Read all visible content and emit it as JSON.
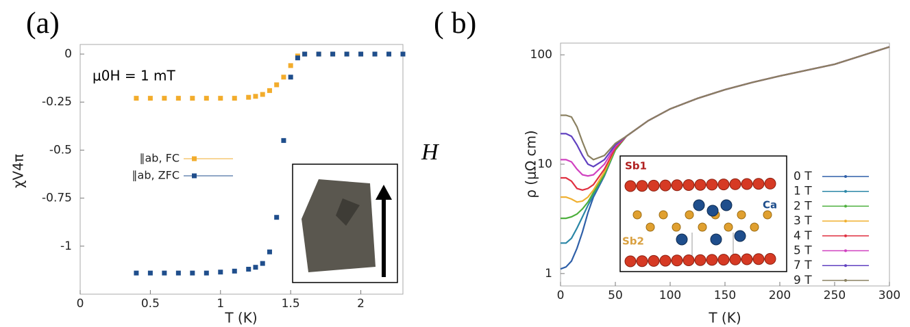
{
  "chart_data": [
    {
      "type": "scatter",
      "label": "(a)",
      "xlabel": "T (K)",
      "ylabel": "χV4π",
      "annotations": [
        "μ0H = 1 mT",
        "H"
      ],
      "xlim": [
        0,
        2.3
      ],
      "ylim": [
        -1.25,
        0.05
      ],
      "xticks": [
        0,
        0.5,
        1,
        1.5,
        2
      ],
      "yticks": [
        0,
        -0.25,
        -0.5,
        -0.75,
        -1
      ],
      "legend": "center left",
      "series": [
        {
          "name": "∥ab, FC",
          "color": "#f2ac2c",
          "x": [
            0.4,
            0.5,
            0.6,
            0.7,
            0.8,
            0.9,
            1.0,
            1.1,
            1.2,
            1.25,
            1.3,
            1.35,
            1.4,
            1.45,
            1.5,
            1.55,
            1.6,
            1.7,
            1.8,
            1.9,
            2.0,
            2.1,
            2.2,
            2.3
          ],
          "values": [
            -0.23,
            -0.23,
            -0.23,
            -0.23,
            -0.23,
            -0.23,
            -0.23,
            -0.23,
            -0.225,
            -0.22,
            -0.21,
            -0.19,
            -0.16,
            -0.12,
            -0.06,
            -0.01,
            0,
            0,
            0,
            0,
            0,
            0,
            0,
            0
          ]
        },
        {
          "name": "∥ab, ZFC",
          "color": "#1f4e8c",
          "x": [
            0.4,
            0.5,
            0.6,
            0.7,
            0.8,
            0.9,
            1.0,
            1.1,
            1.2,
            1.25,
            1.3,
            1.35,
            1.4,
            1.45,
            1.5,
            1.55,
            1.6,
            1.7,
            1.8,
            1.9,
            2.0,
            2.1,
            2.2,
            2.3
          ],
          "values": [
            -1.14,
            -1.14,
            -1.14,
            -1.14,
            -1.14,
            -1.14,
            -1.135,
            -1.13,
            -1.12,
            -1.11,
            -1.09,
            -1.03,
            -0.85,
            -0.45,
            -0.12,
            -0.02,
            0,
            0,
            0,
            0,
            0,
            0,
            0,
            0
          ]
        }
      ]
    },
    {
      "type": "line",
      "label": "( b)",
      "xlabel": "T (K)",
      "ylabel": "ρ (μΩ cm)",
      "annotations": [
        "Sb1",
        "Sb2",
        "Ca"
      ],
      "log_y": true,
      "xlim": [
        0,
        300
      ],
      "ylim": [
        0.77,
        128
      ],
      "xticks": [
        0,
        50,
        100,
        150,
        200,
        250,
        300
      ],
      "yticks": [
        1,
        10,
        100
      ],
      "legend": "right",
      "x": [
        0,
        5,
        10,
        15,
        20,
        25,
        30,
        40,
        50,
        60,
        80,
        100,
        125,
        150,
        175,
        200,
        250,
        300
      ],
      "series": [
        {
          "name": "0 T",
          "color": "#2e5fa8",
          "values": [
            1.1,
            1.15,
            1.3,
            1.7,
            2.4,
            3.6,
            5,
            7.8,
            13.5,
            18,
            25,
            32,
            40,
            48,
            56,
            64,
            82,
            118
          ]
        },
        {
          "name": "1 T",
          "color": "#2a86a6",
          "values": [
            1.9,
            1.9,
            2.1,
            2.6,
            3.3,
            4.2,
            5.2,
            8,
            13.5,
            18,
            25,
            32,
            40,
            48,
            56,
            64,
            82,
            118
          ]
        },
        {
          "name": "2 T",
          "color": "#4caf3c",
          "values": [
            3.2,
            3.2,
            3.3,
            3.5,
            3.9,
            4.5,
            5.5,
            8,
            13.5,
            18,
            25,
            32,
            40,
            48,
            56,
            64,
            82,
            118
          ]
        },
        {
          "name": "3 T",
          "color": "#f0b030",
          "values": [
            5,
            5,
            4.8,
            4.5,
            4.6,
            5,
            5.8,
            8.5,
            14,
            18,
            25,
            32,
            40,
            48,
            56,
            64,
            82,
            118
          ]
        },
        {
          "name": "4 T",
          "color": "#e03040",
          "values": [
            7.5,
            7.5,
            7,
            6,
            5.8,
            6,
            6.5,
            9,
            14,
            18,
            25,
            32,
            40,
            48,
            56,
            64,
            82,
            118
          ]
        },
        {
          "name": "5 T",
          "color": "#d040c0",
          "values": [
            11,
            11,
            10.5,
            9,
            8,
            7.8,
            8,
            10,
            14.5,
            18,
            25,
            32,
            40,
            48,
            56,
            64,
            82,
            118
          ]
        },
        {
          "name": "7 T",
          "color": "#6040c0",
          "values": [
            19,
            19,
            18,
            15,
            12,
            10,
            9.5,
            11,
            15,
            18,
            25,
            32,
            40,
            48,
            56,
            64,
            82,
            118
          ]
        },
        {
          "name": "9 T",
          "color": "#8a8060",
          "values": [
            28,
            28,
            27,
            22,
            16,
            12,
            11,
            12,
            15.5,
            18,
            25,
            32,
            40,
            48,
            56,
            64,
            82,
            118
          ]
        }
      ]
    }
  ]
}
